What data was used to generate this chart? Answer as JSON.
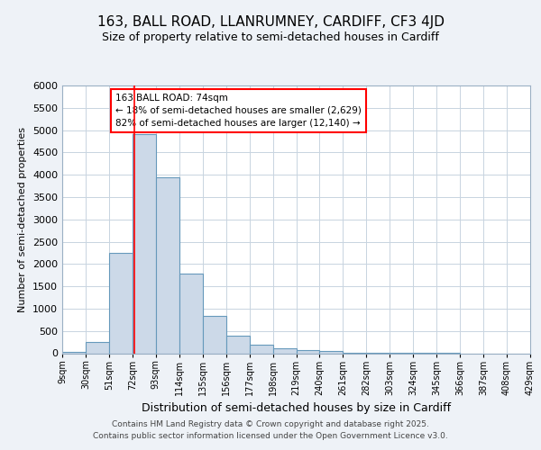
{
  "title1": "163, BALL ROAD, LLANRUMNEY, CARDIFF, CF3 4JD",
  "title2": "Size of property relative to semi-detached houses in Cardiff",
  "xlabel": "Distribution of semi-detached houses by size in Cardiff",
  "ylabel": "Number of semi-detached properties",
  "annotation_title": "163 BALL ROAD: 74sqm",
  "annotation_line1": "← 18% of semi-detached houses are smaller (2,629)",
  "annotation_line2": "82% of semi-detached houses are larger (12,140) →",
  "footer1": "Contains HM Land Registry data © Crown copyright and database right 2025.",
  "footer2": "Contains public sector information licensed under the Open Government Licence v3.0.",
  "bins": [
    9,
    30,
    51,
    72,
    93,
    114,
    135,
    156,
    177,
    198,
    219,
    240,
    261,
    282,
    303,
    324,
    345,
    366,
    387,
    408,
    429
  ],
  "bin_labels": [
    "9sqm",
    "30sqm",
    "51sqm",
    "72sqm",
    "93sqm",
    "114sqm",
    "135sqm",
    "156sqm",
    "177sqm",
    "198sqm",
    "219sqm",
    "240sqm",
    "261sqm",
    "282sqm",
    "303sqm",
    "324sqm",
    "345sqm",
    "366sqm",
    "387sqm",
    "408sqm",
    "429sqm"
  ],
  "values": [
    40,
    260,
    2250,
    4920,
    3950,
    1780,
    830,
    390,
    200,
    110,
    70,
    50,
    15,
    5,
    3,
    2,
    1,
    0,
    0,
    0
  ],
  "bar_color": "#ccd9e8",
  "bar_edge_color": "#6699bb",
  "red_line_x": 74,
  "ylim": [
    0,
    6000
  ],
  "yticks": [
    0,
    500,
    1000,
    1500,
    2000,
    2500,
    3000,
    3500,
    4000,
    4500,
    5000,
    5500,
    6000
  ],
  "background_color": "#eef2f7",
  "plot_background": "#ffffff",
  "grid_color": "#c8d4e0"
}
